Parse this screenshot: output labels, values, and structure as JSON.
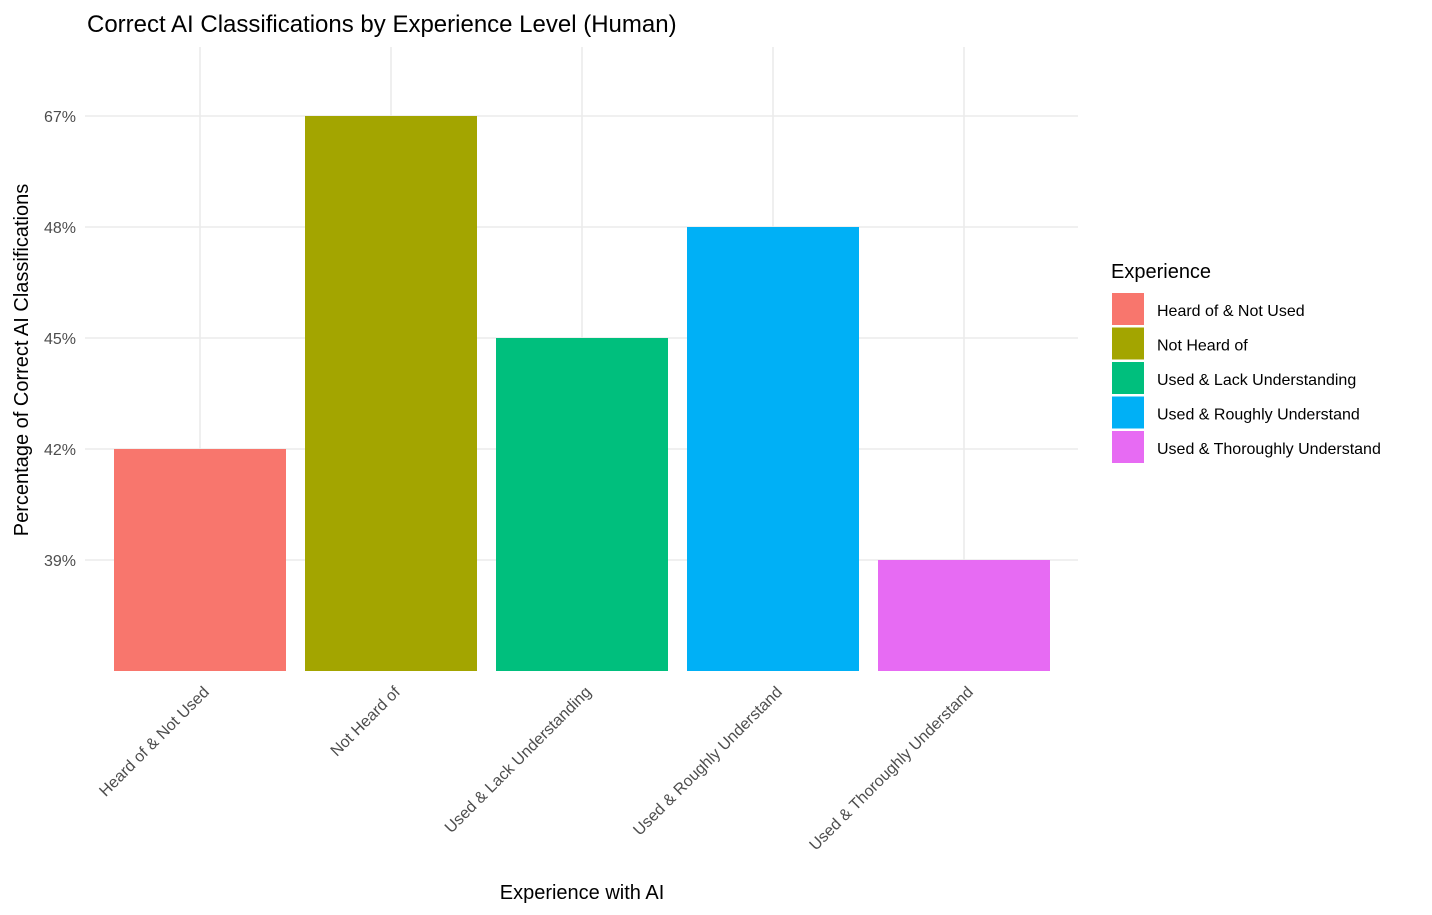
{
  "chart_data": {
    "type": "bar",
    "title": "Correct AI Classifications by Experience Level (Human)",
    "xlabel": "Experience with AI",
    "ylabel": "Percentage of Correct AI Classifications",
    "categories": [
      "Heard of & Not Used",
      "Not Heard of",
      "Used & Lack Understanding",
      "Used & Roughly Understand",
      "Used & Thoroughly Understand"
    ],
    "values": [
      42,
      67,
      45,
      48,
      39
    ],
    "y_tick_labels": [
      "39%",
      "42%",
      "45%",
      "48%",
      "67%"
    ],
    "y_axis_note": "axis is categorical: each tick label is an ordered level, not a linear scale",
    "colors": [
      "#F8766D",
      "#A3A500",
      "#00BF7D",
      "#00B0F6",
      "#E76BF3"
    ],
    "legend": {
      "title": "Experience",
      "placement": "right",
      "entries": [
        "Heard of & Not Used",
        "Not Heard of",
        "Used & Lack Understanding",
        "Used & Roughly Understand",
        "Used & Thoroughly Understand"
      ]
    },
    "grid": true
  }
}
